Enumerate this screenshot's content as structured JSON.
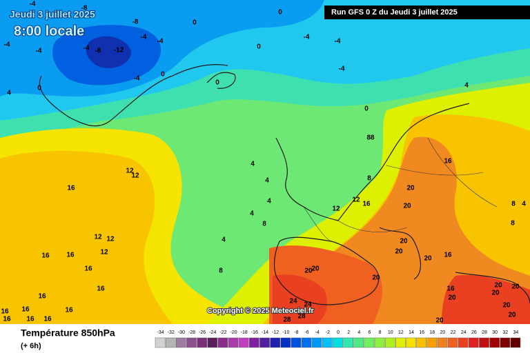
{
  "header": {
    "date": "Jeudi 3 juillet 2025",
    "time": "8:00 locale",
    "run": "Run GFS 0 Z du Jeudi 3 juillet 2025"
  },
  "copyright": "Copyright © 2025 Meteociel.fr",
  "map_labels": [
    -4,
    -8,
    -8,
    -4,
    -4,
    -4,
    -8,
    -12,
    -4,
    -4,
    -4,
    0,
    0,
    4,
    0,
    0,
    0,
    -4,
    -4,
    -4,
    0,
    0,
    4,
    88,
    4,
    4,
    4,
    8,
    12,
    16,
    12,
    8,
    4,
    4,
    8,
    12,
    12,
    16,
    12,
    12,
    12,
    16,
    16,
    16,
    16,
    16,
    16,
    16,
    16,
    16,
    16,
    16,
    16,
    20,
    20,
    20,
    20,
    20,
    16,
    20,
    20,
    20,
    24,
    24,
    28,
    28,
    16,
    20,
    20,
    20,
    20,
    20,
    20,
    20,
    8,
    4,
    8
  ],
  "legend": {
    "title": "Température 850hPa",
    "subtitle": "(+ 6h)",
    "values": [
      -34,
      -32,
      -30,
      -28,
      -26,
      -24,
      -22,
      -20,
      -18,
      -16,
      -14,
      -12,
      -10,
      -8,
      -6,
      -4,
      -2,
      0,
      2,
      4,
      6,
      8,
      10,
      12,
      14,
      16,
      18,
      20,
      22,
      24,
      26,
      28,
      30,
      32,
      34
    ],
    "colors": [
      "#d2d2d2",
      "#b4b4b4",
      "#a07ca0",
      "#8c508c",
      "#7a2f7a",
      "#5a1e5a",
      "#8a2c8a",
      "#aa3caa",
      "#c040c0",
      "#8020a0",
      "#5020a0",
      "#2020b0",
      "#0030c8",
      "#0050e0",
      "#0070f0",
      "#0098f8",
      "#00c0f8",
      "#00e0e0",
      "#30e8b0",
      "#50e880",
      "#70f060",
      "#90f040",
      "#b0f020",
      "#e0f000",
      "#f8e000",
      "#f8c000",
      "#f8a000",
      "#f08020",
      "#f06020",
      "#e84020",
      "#e02020",
      "#c01010",
      "#a00000",
      "#800000",
      "#600000"
    ]
  }
}
